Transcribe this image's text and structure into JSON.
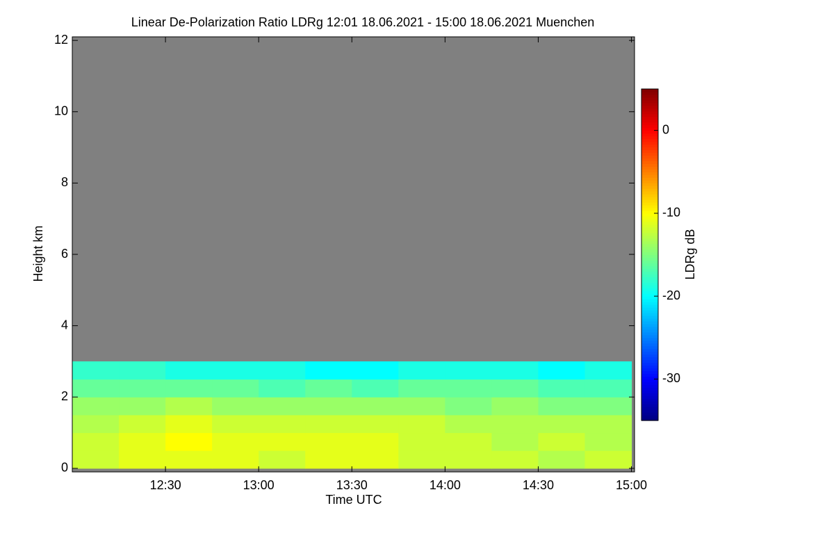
{
  "chart_data": {
    "type": "heatmap",
    "title": "Linear De-Polarization Ratio LDRg   12:01 18.06.2021 - 15:00 18.06.2021 Muenchen",
    "x_label": "Time UTC",
    "y_label": "Height km",
    "colorbar_label": "LDRg dB",
    "colormap": "jet",
    "background_color": "#808080",
    "xlim": [
      "12:00",
      "15:01"
    ],
    "xticks": [
      "12:30",
      "13:00",
      "13:30",
      "14:00",
      "14:30",
      "15:00"
    ],
    "ylim": [
      -0.1,
      12.1
    ],
    "yticks": [
      0,
      2,
      4,
      6,
      8,
      10,
      12
    ],
    "clim": [
      -35,
      5
    ],
    "cticks": [
      0,
      -10,
      -20,
      -30
    ],
    "x_bins": [
      "12:00",
      "12:15",
      "12:30",
      "12:45",
      "13:00",
      "13:15",
      "13:30",
      "13:45",
      "14:00",
      "14:15",
      "14:30",
      "14:45",
      "15:00"
    ],
    "y_bins": [
      0,
      0.5,
      1,
      1.5,
      2,
      2.5,
      3,
      3.5
    ],
    "values": [
      [
        -12,
        -11,
        -11,
        -11,
        -12,
        -11,
        -11,
        -12,
        -12,
        -12,
        -13,
        -12
      ],
      [
        -12,
        -11,
        -10,
        -11,
        -11,
        -11,
        -11,
        -12,
        -12,
        -13,
        -12,
        -13
      ],
      [
        -13,
        -12,
        -11,
        -12,
        -12,
        -12,
        -12,
        -12,
        -13,
        -13,
        -13,
        -13
      ],
      [
        -14,
        -14,
        -13,
        -14,
        -14,
        -14,
        -14,
        -14,
        -15,
        -14,
        -15,
        -15
      ],
      [
        -16,
        -16,
        -16,
        -16,
        -17,
        -16,
        -17,
        -16,
        -16,
        -16,
        -17,
        -17
      ],
      [
        -18,
        -18,
        -19,
        -19,
        -19,
        -20,
        -20,
        -19,
        -19,
        -19,
        -20,
        -19
      ],
      [
        null,
        null,
        null,
        null,
        null,
        null,
        null,
        null,
        null,
        null,
        null,
        null
      ]
    ]
  }
}
